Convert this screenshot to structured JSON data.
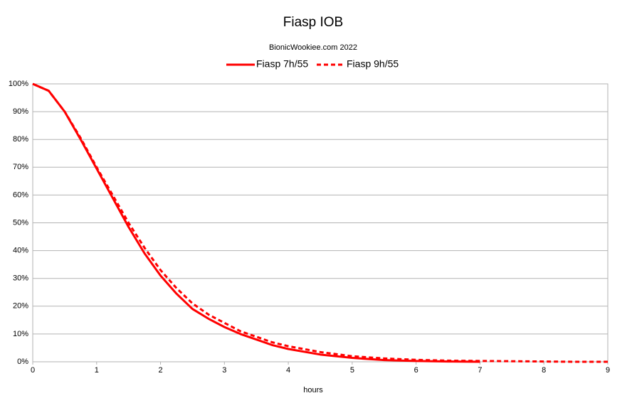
{
  "chart_data": {
    "type": "line",
    "title": "Fiasp IOB",
    "subtitle": "BionicWookiee.com 2022",
    "x_label": "hours",
    "x": [
      0,
      0.25,
      0.5,
      0.75,
      1,
      1.25,
      1.5,
      1.75,
      2,
      2.25,
      2.5,
      2.75,
      3,
      3.25,
      3.5,
      3.75,
      4,
      4.5,
      5,
      5.5,
      6,
      6.5,
      7,
      7.5,
      8,
      8.5,
      9
    ],
    "series": [
      {
        "name": "Fiasp 7h/55",
        "color": "#ff0000",
        "dash": false,
        "values": [
          100,
          97.5,
          90,
          80,
          69.5,
          59,
          48.5,
          39,
          31,
          24.5,
          19,
          15.5,
          12.5,
          10,
          8,
          6,
          4.6,
          2.6,
          1.4,
          0.6,
          0.3,
          0.1,
          0,
          null,
          null,
          null,
          null
        ]
      },
      {
        "name": "Fiasp 9h/55",
        "color": "#ff0000",
        "dash": true,
        "values": [
          100,
          97.5,
          90,
          80.5,
          70,
          60,
          50,
          41,
          33,
          26.5,
          21,
          17,
          14,
          11,
          9,
          7,
          5.6,
          3.5,
          2,
          1.2,
          0.7,
          0.4,
          0.3,
          0.2,
          0.1,
          0,
          0
        ]
      }
    ],
    "xlim": [
      0,
      9
    ],
    "xticks": [
      0,
      1,
      2,
      3,
      4,
      5,
      6,
      7,
      8,
      9
    ],
    "ylim": [
      0,
      100
    ],
    "yticks": [
      {
        "value": 0,
        "label": "0%"
      },
      {
        "value": 10,
        "label": "10%"
      },
      {
        "value": 20,
        "label": "20%"
      },
      {
        "value": 30,
        "label": "30%"
      },
      {
        "value": 40,
        "label": "40%"
      },
      {
        "value": 50,
        "label": "50%"
      },
      {
        "value": 60,
        "label": "60%"
      },
      {
        "value": 70,
        "label": "70%"
      },
      {
        "value": 80,
        "label": "80%"
      },
      {
        "value": 90,
        "label": "90%"
      },
      {
        "value": 100,
        "label": "100%"
      }
    ],
    "grid": true,
    "legend": "top"
  }
}
